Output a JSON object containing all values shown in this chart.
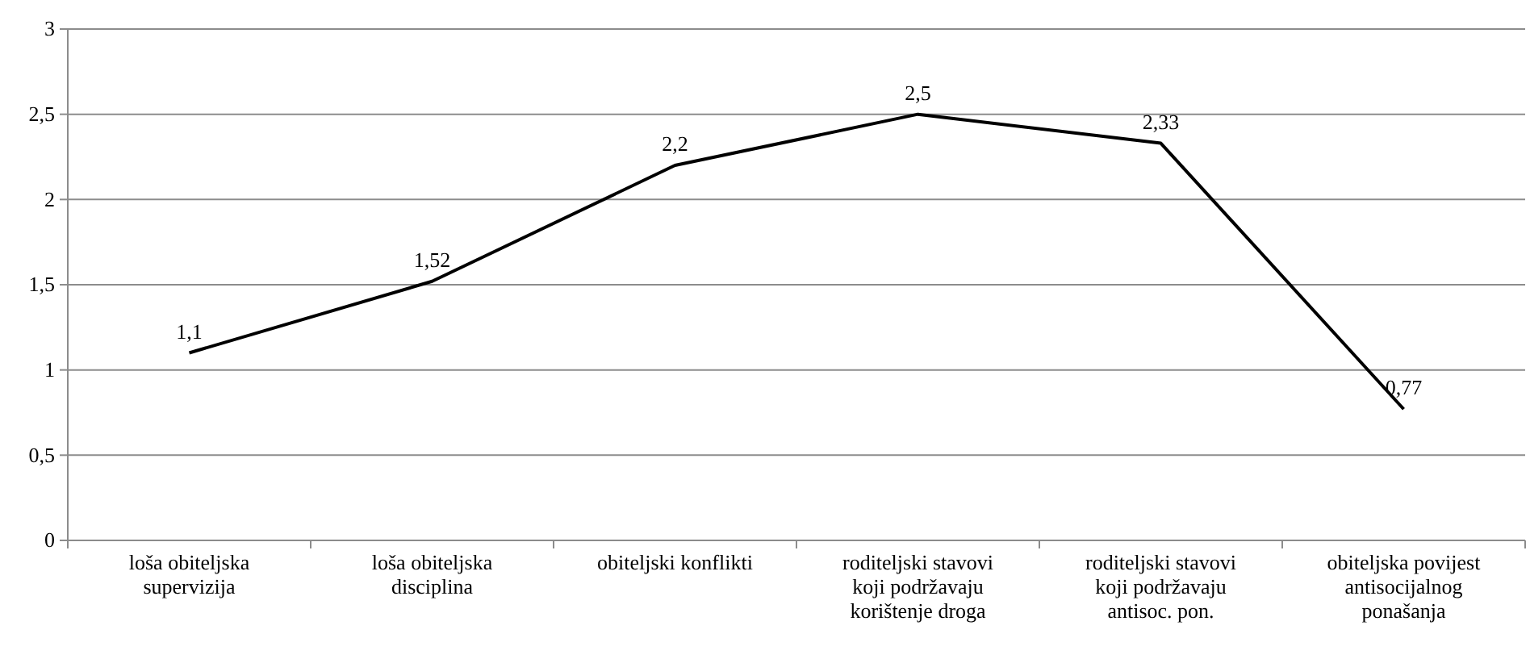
{
  "chart_data": {
    "type": "line",
    "categories": [
      "loša obiteljska supervizija",
      "loša obiteljska disciplina",
      "obiteljski konflikti",
      "roditeljski stavovi koji podržavaju korištenje droga",
      "roditeljski stavovi koji podržavaju antisoc. pon.",
      "obiteljska povijest antisocijalnog ponašanja"
    ],
    "series": [
      {
        "color": "#000000",
        "values": [
          1.1,
          1.52,
          2.2,
          2.5,
          2.33,
          0.77
        ],
        "value_labels": [
          "1,1",
          "1,52",
          "2,2",
          "2,5",
          "2,33",
          "0,77"
        ]
      }
    ],
    "ylim": [
      0,
      3
    ],
    "yticks": [
      0,
      {
        "value": 0.5,
        "label": "0,5"
      },
      1,
      {
        "value": 1.5,
        "label": "1,5"
      },
      2,
      {
        "value": 2.5,
        "label": "2,5"
      },
      3
    ],
    "grid": "y",
    "marker": "none",
    "line_style": "solid"
  }
}
